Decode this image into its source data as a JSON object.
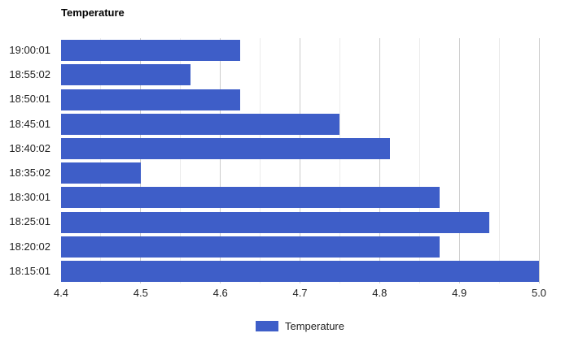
{
  "page": {
    "background": "#FFFFFF"
  },
  "header": {
    "title": "Temperature"
  },
  "legend": {
    "label": "Temperature"
  },
  "colors": {
    "bar": "#3E5EC8",
    "grid_major": "#CCCCCC",
    "grid_minor": "#EBEBEB",
    "axis_text": "#222222",
    "title_text": "#000000"
  },
  "chart_data": {
    "type": "bar",
    "orientation": "horizontal",
    "title": "Temperature",
    "categories": [
      "19:00:01",
      "18:55:02",
      "18:50:01",
      "18:45:01",
      "18:40:02",
      "18:35:02",
      "18:30:01",
      "18:25:01",
      "18:20:02",
      "18:15:01"
    ],
    "series": [
      {
        "name": "Temperature",
        "values": [
          4.625,
          4.5625,
          4.625,
          4.75,
          4.8125,
          4.5,
          4.875,
          4.9375,
          4.875,
          5.0
        ]
      }
    ],
    "xlabel": "",
    "ylabel": "",
    "xlim": [
      4.4,
      5.0
    ],
    "x_tick_labels": [
      "4.4",
      "4.5",
      "4.6",
      "4.7",
      "4.8",
      "4.9",
      "5.0"
    ],
    "major_gridline_step": 0.1,
    "minor_gridline_step": 0.05,
    "grid": true,
    "legend_entries": [
      "Temperature"
    ],
    "legend_position": "bottom"
  }
}
